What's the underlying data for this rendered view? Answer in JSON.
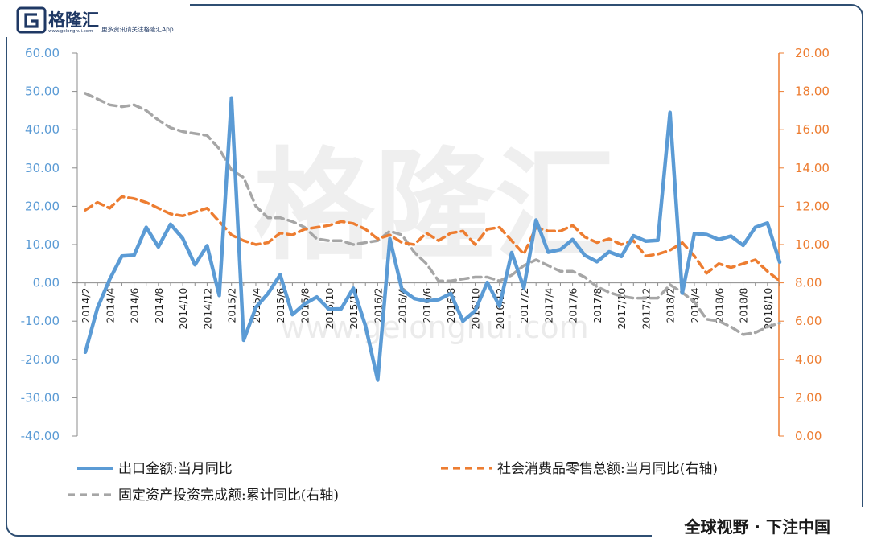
{
  "header": {
    "brand_name": "格隆汇",
    "brand_url": "www.gelonghui.com",
    "brand_tagline": "更多资讯请关注格隆汇App"
  },
  "watermark": {
    "text": "格隆汇",
    "url": "www.gelonghui.com"
  },
  "footer": {
    "slogan": "全球视野 · 下注中国"
  },
  "colors": {
    "export": "#5b9bd5",
    "retail": "#ed7d31",
    "fai": "#a6a6a6",
    "frame": "#2f4f73"
  },
  "chart_data": {
    "type": "line",
    "title": "",
    "y_left": {
      "ylim": [
        -40,
        60
      ],
      "ticks": [
        "60.00",
        "50.00",
        "40.00",
        "30.00",
        "20.00",
        "10.00",
        "0.00",
        "-10.00",
        "-20.00",
        "-30.00",
        "-40.00"
      ]
    },
    "y_right": {
      "ylim": [
        0,
        20
      ],
      "ticks": [
        "20.00",
        "18.00",
        "16.00",
        "14.00",
        "12.00",
        "10.00",
        "8.00",
        "6.00",
        "4.00",
        "2.00",
        "0.00"
      ]
    },
    "x_tick_labels": [
      "2014/2",
      "2014/4",
      "2014/6",
      "2014/8",
      "2014/10",
      "2014/12",
      "2015/2",
      "2015/4",
      "2015/6",
      "2015/8",
      "2015/10",
      "2015/12",
      "2016/2",
      "2016/4",
      "2016/6",
      "2016/8",
      "2016/10",
      "2016/12",
      "2017/2",
      "2017/4",
      "2017/6",
      "2017/8",
      "2017/10",
      "2017/12",
      "2018/2",
      "2018/4",
      "2018/6",
      "2018/8",
      "2018/10"
    ],
    "x": [
      "2014/2",
      "2014/3",
      "2014/4",
      "2014/5",
      "2014/6",
      "2014/7",
      "2014/8",
      "2014/9",
      "2014/10",
      "2014/11",
      "2014/12",
      "2015/1",
      "2015/2",
      "2015/3",
      "2015/4",
      "2015/5",
      "2015/6",
      "2015/7",
      "2015/8",
      "2015/9",
      "2015/10",
      "2015/11",
      "2015/12",
      "2016/1",
      "2016/2",
      "2016/3",
      "2016/4",
      "2016/5",
      "2016/6",
      "2016/7",
      "2016/8",
      "2016/9",
      "2016/10",
      "2016/11",
      "2016/12",
      "2017/1",
      "2017/2",
      "2017/3",
      "2017/4",
      "2017/5",
      "2017/6",
      "2017/7",
      "2017/8",
      "2017/9",
      "2017/10",
      "2017/11",
      "2017/12",
      "2018/1",
      "2018/2",
      "2018/3",
      "2018/4",
      "2018/5",
      "2018/6",
      "2018/7",
      "2018/8",
      "2018/9",
      "2018/10",
      "2018/11"
    ],
    "series": [
      {
        "name": "出口金额:当月同比",
        "axis": "left",
        "style": "solid",
        "values": [
          -18.1,
          -6.6,
          0.9,
          7.0,
          7.2,
          14.5,
          9.4,
          15.3,
          11.6,
          4.7,
          9.7,
          -3.3,
          48.3,
          -15.0,
          -6.4,
          -2.8,
          2.1,
          -8.3,
          -5.5,
          -3.7,
          -6.9,
          -6.8,
          -1.4,
          -11.2,
          -25.4,
          11.5,
          -1.8,
          -4.1,
          -4.8,
          -4.4,
          -2.8,
          -10.0,
          -7.3,
          0.1,
          -6.1,
          7.9,
          -1.3,
          16.4,
          8.0,
          8.7,
          11.3,
          7.2,
          5.5,
          8.1,
          6.9,
          12.3,
          10.9,
          11.1,
          44.5,
          -2.7,
          12.9,
          12.6,
          11.3,
          12.2,
          9.8,
          14.5,
          15.6,
          5.4
        ]
      },
      {
        "name": "社会消费品零售总额:当月同比(右轴)",
        "axis": "right",
        "style": "dashed",
        "values": [
          11.8,
          12.2,
          11.9,
          12.5,
          12.4,
          12.2,
          11.9,
          11.6,
          11.5,
          11.7,
          11.9,
          11.2,
          10.5,
          10.2,
          10.0,
          10.1,
          10.6,
          10.5,
          10.8,
          10.9,
          11.0,
          11.2,
          11.1,
          10.8,
          10.3,
          10.5,
          10.1,
          10.0,
          10.6,
          10.2,
          10.6,
          10.7,
          10.0,
          10.8,
          10.9,
          10.2,
          9.5,
          10.9,
          10.7,
          10.7,
          11.0,
          10.4,
          10.1,
          10.3,
          10.0,
          10.2,
          9.4,
          9.5,
          9.7,
          10.1,
          9.4,
          8.5,
          9.0,
          8.8,
          9.0,
          9.2,
          8.6,
          8.1
        ]
      },
      {
        "name": "固定资产投资完成额:累计同比(右轴)",
        "axis": "right",
        "style": "dashed",
        "values": [
          17.9,
          17.6,
          17.3,
          17.2,
          17.3,
          17.0,
          16.5,
          16.1,
          15.9,
          15.8,
          15.7,
          15.0,
          13.9,
          13.5,
          12.0,
          11.4,
          11.4,
          11.2,
          10.9,
          10.3,
          10.2,
          10.2,
          10.0,
          10.1,
          10.2,
          10.7,
          10.5,
          9.6,
          9.0,
          8.1,
          8.1,
          8.2,
          8.3,
          8.3,
          8.1,
          8.4,
          8.9,
          9.2,
          8.9,
          8.6,
          8.6,
          8.3,
          7.8,
          7.5,
          7.3,
          7.2,
          7.2,
          7.2,
          7.9,
          7.5,
          7.0,
          6.1,
          6.0,
          5.7,
          5.3,
          5.4,
          5.7,
          5.9
        ]
      }
    ],
    "legend": "bottom",
    "grid": false
  }
}
